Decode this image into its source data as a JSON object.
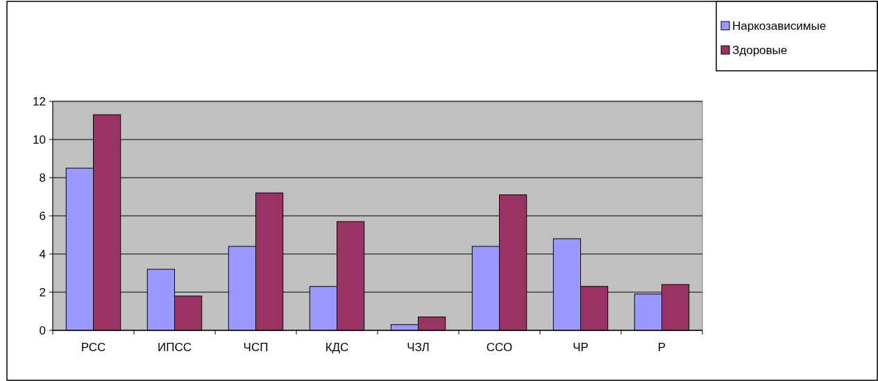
{
  "chart_data": {
    "type": "bar",
    "categories": [
      "РСС",
      "ИПСС",
      "ЧСП",
      "КДС",
      "ЧЗЛ",
      "ССО",
      "ЧР",
      "Р"
    ],
    "series": [
      {
        "name": "Наркозависимые",
        "color": "#9999ff",
        "values": [
          8.5,
          3.2,
          4.4,
          2.3,
          0.3,
          4.4,
          4.8,
          1.9
        ]
      },
      {
        "name": "Здоровые",
        "color": "#993366",
        "values": [
          11.3,
          1.8,
          7.2,
          5.7,
          0.7,
          7.1,
          2.3,
          2.4
        ]
      }
    ],
    "ylim": [
      0,
      12
    ],
    "yticks": [
      0,
      2,
      4,
      6,
      8,
      10,
      12
    ],
    "grid": "y",
    "legend": "top right"
  }
}
